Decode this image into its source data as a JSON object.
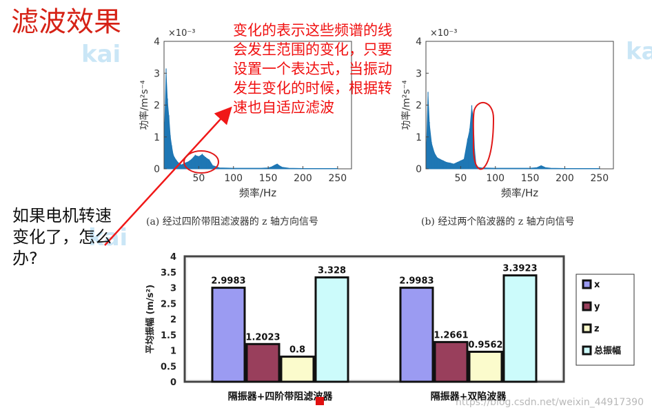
{
  "slide": {
    "title": "滤波效果",
    "callout": "变化的表示这些频谱的线会发生范围的变化，只要设置一个表达式，当振动发生变化的时候，根据转速也自适应滤波",
    "question": "如果电机转速变化了，怎么办?",
    "watermark": "https://blog.csdn.net/weixin_44917390",
    "logo_text": "kai"
  },
  "chart_data": [
    {
      "type": "area",
      "caption": "(a) 经过四阶带阻滤波器的 z 轴方向信号",
      "xlabel": "频率/Hz",
      "ylabel": "功率/m²s⁻⁴",
      "multiplier": "×10⁻³",
      "xticks": [
        50,
        100,
        150,
        200,
        250
      ],
      "yticks": [
        0,
        1,
        2,
        3,
        4
      ],
      "xlim": [
        0,
        270
      ],
      "ylim": [
        0,
        4
      ],
      "color": "#1f77b4",
      "x": [
        1,
        3,
        5,
        7,
        9,
        11,
        13,
        15,
        20,
        25,
        30,
        35,
        40,
        45,
        50,
        55,
        60,
        65,
        70,
        80,
        100,
        120,
        140,
        150,
        155,
        160,
        163,
        166,
        170,
        180,
        200,
        220,
        250
      ],
      "y": [
        1.4,
        3.0,
        2.1,
        1.6,
        1.0,
        0.7,
        0.45,
        0.35,
        0.2,
        0.12,
        0.18,
        0.22,
        0.3,
        0.42,
        0.38,
        0.45,
        0.35,
        0.28,
        0.1,
        0.03,
        0.02,
        0.02,
        0.02,
        0.03,
        0.06,
        0.12,
        0.15,
        0.1,
        0.05,
        0.02,
        0.01,
        0.01,
        0.01
      ]
    },
    {
      "type": "area",
      "caption": "(b) 经过两个陷波器的 z 轴方向信号",
      "xlabel": "频率/Hz",
      "ylabel": "功率/m²s⁻⁴",
      "multiplier": "×10⁻³",
      "xticks": [
        50,
        100,
        150,
        200,
        250
      ],
      "yticks": [
        0,
        1,
        2,
        3,
        4
      ],
      "xlim": [
        0,
        270
      ],
      "ylim": [
        0,
        4
      ],
      "color": "#1f77b4",
      "x": [
        1,
        3,
        5,
        8,
        12,
        16,
        20,
        25,
        30,
        35,
        40,
        45,
        50,
        55,
        60,
        63,
        66,
        68,
        70,
        72,
        75,
        80,
        100,
        150,
        160,
        166,
        172,
        180,
        200,
        250
      ],
      "y": [
        0.8,
        2.3,
        1.4,
        0.8,
        0.5,
        0.35,
        0.3,
        0.25,
        0.2,
        0.18,
        0.15,
        0.2,
        0.25,
        0.3,
        0.9,
        1.2,
        1.9,
        1.6,
        0.6,
        0.15,
        0.05,
        0.03,
        0.02,
        0.02,
        0.04,
        0.1,
        0.04,
        0.02,
        0.01,
        0.01
      ]
    },
    {
      "type": "bar",
      "ylabel": "平均振幅 (m/s²)",
      "ylim": [
        0,
        4
      ],
      "yticks": [
        0,
        0.5,
        1,
        1.5,
        2,
        2.5,
        3,
        3.5,
        4
      ],
      "ytick_labels": [
        "0",
        "0.5",
        "1",
        "1.5",
        "2",
        "2.5",
        "3",
        "3.5",
        "4"
      ],
      "categories": [
        "隔振器+四阶带阻滤波器",
        "隔振器+双陷波器"
      ],
      "series": [
        {
          "name": "x",
          "color": "#9b9bf2",
          "values": [
            2.9983,
            2.9983
          ],
          "labels": [
            "2.9983",
            "2.9983"
          ]
        },
        {
          "name": "y",
          "color": "#993f5c",
          "values": [
            1.2023,
            1.2661
          ],
          "labels": [
            "1.2023",
            "1.2661"
          ]
        },
        {
          "name": "z",
          "color": "#fbfbcc",
          "values": [
            0.8,
            0.9562
          ],
          "labels": [
            "0.8",
            "0.9562"
          ]
        },
        {
          "name": "总振幅",
          "color": "#ccfbfb",
          "values": [
            3.328,
            3.3923
          ],
          "labels": [
            "3.328",
            "3.3923"
          ]
        }
      ],
      "legend": "right"
    }
  ]
}
